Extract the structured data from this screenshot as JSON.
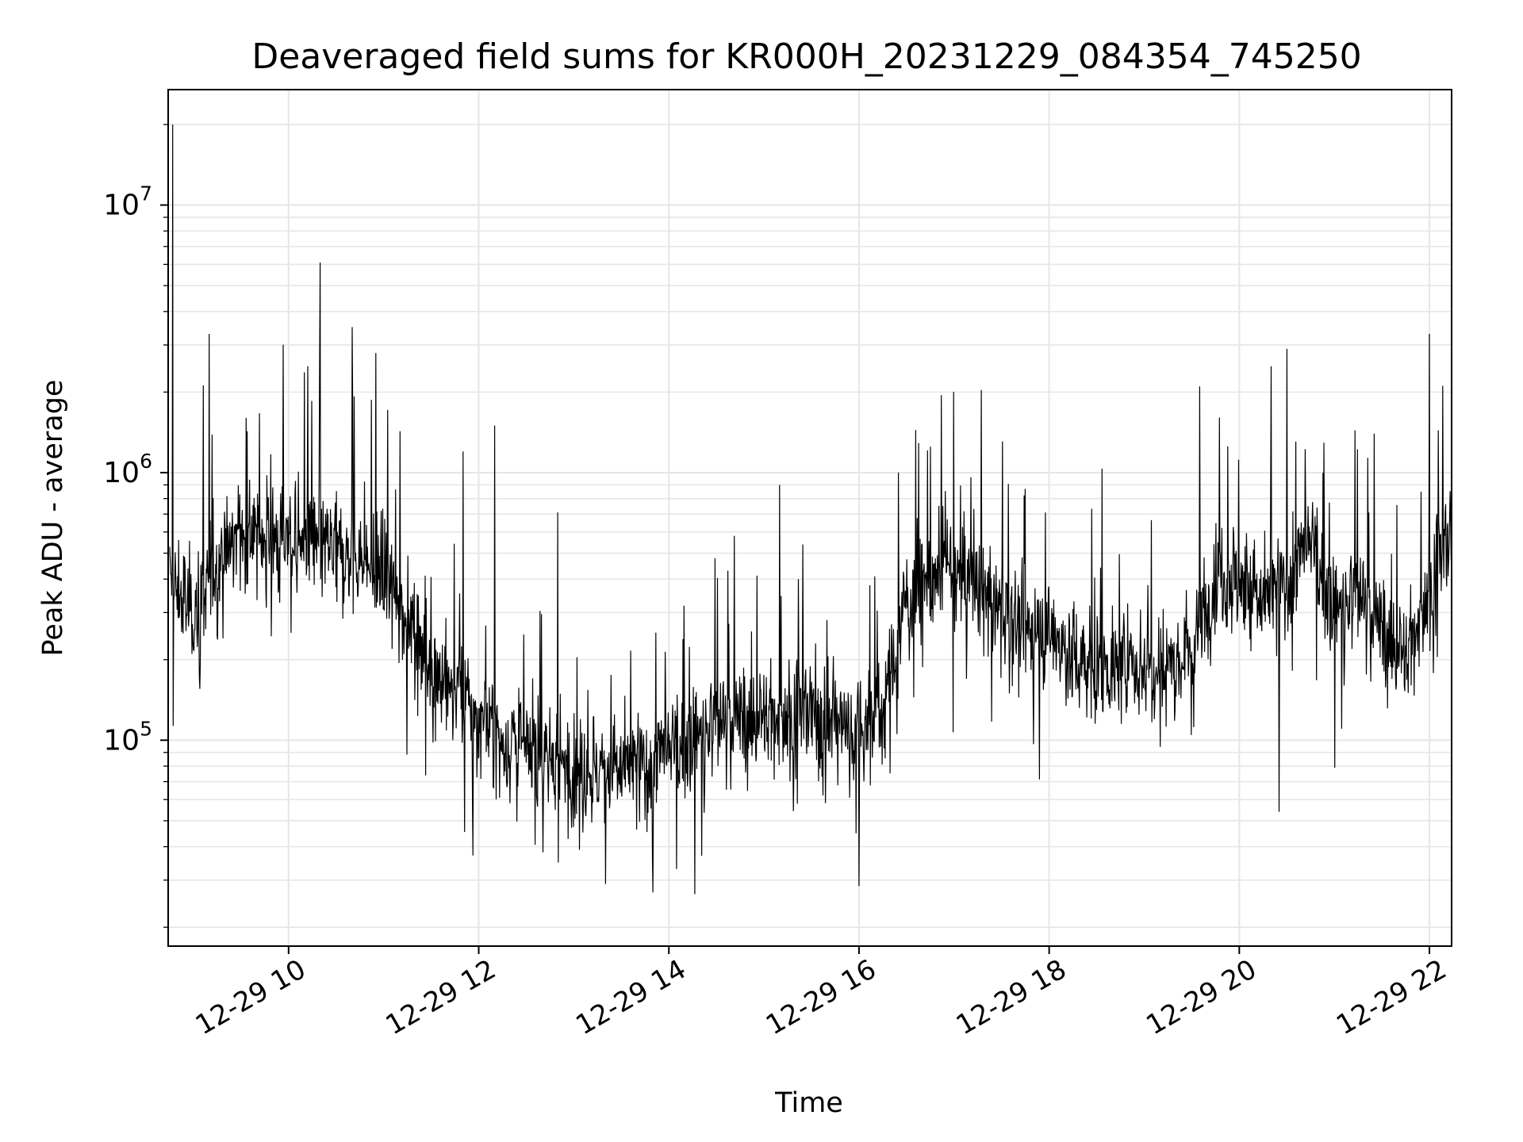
{
  "chart_data": {
    "type": "line",
    "title": "Deaveraged field sums for KR000H_20231229_084354_745250",
    "xlabel": "Time",
    "ylabel": "Peak ADU - average",
    "x_ticks": [
      "12-29 10",
      "12-29 12",
      "12-29 14",
      "12-29 16",
      "12-29 18",
      "12-29 20",
      "12-29 22"
    ],
    "y_ticks": [
      {
        "base": "10",
        "exp": "5",
        "value": 100000
      },
      {
        "base": "10",
        "exp": "6",
        "value": 1000000
      },
      {
        "base": "10",
        "exp": "7",
        "value": 10000000
      }
    ],
    "y_scale": "log",
    "ylim": [
      17000,
      27000000
    ],
    "xlim": [
      "2023-12-29 08:44",
      "2023-12-29 22:14"
    ],
    "grid": true,
    "line_color": "#000000",
    "series": [
      {
        "x": [
          "08:45",
          "09:00",
          "09:15",
          "09:30",
          "09:45",
          "10:00",
          "10:15",
          "10:30",
          "10:45",
          "11:00",
          "11:15",
          "11:30",
          "11:45",
          "12:00",
          "12:15",
          "12:30",
          "12:45",
          "13:00",
          "13:15",
          "13:30",
          "13:45",
          "14:00",
          "14:15",
          "14:30",
          "14:45",
          "15:00",
          "15:15",
          "15:30",
          "15:45",
          "16:00",
          "16:15",
          "16:30",
          "16:45",
          "17:00",
          "17:15",
          "17:30",
          "17:45",
          "18:00",
          "18:15",
          "18:30",
          "18:45",
          "19:00",
          "19:15",
          "19:30",
          "19:45",
          "20:00",
          "20:15",
          "20:30",
          "20:45",
          "21:00",
          "21:15",
          "21:30",
          "21:45",
          "22:00",
          "22:14"
        ],
        "values": [
          380000,
          300000,
          450000,
          600000,
          580000,
          560000,
          540000,
          500000,
          470000,
          400000,
          300000,
          190000,
          150000,
          120000,
          100000,
          90000,
          85000,
          80000,
          75000,
          78000,
          80000,
          90000,
          100000,
          115000,
          120000,
          120000,
          125000,
          125000,
          115000,
          110000,
          130000,
          330000,
          400000,
          420000,
          380000,
          300000,
          250000,
          260000,
          200000,
          190000,
          185000,
          190000,
          200000,
          220000,
          420000,
          400000,
          320000,
          380000,
          550000,
          300000,
          350000,
          260000,
          200000,
          380000,
          580000
        ],
        "spikes": [
          {
            "x": "08:47",
            "y": 20000000
          },
          {
            "x": "09:10",
            "y": 3300000
          },
          {
            "x": "10:12",
            "y": 2500000
          },
          {
            "x": "10:20",
            "y": 6100000
          },
          {
            "x": "10:40",
            "y": 3500000
          },
          {
            "x": "10:55",
            "y": 2800000
          },
          {
            "x": "11:50",
            "y": 1200000
          },
          {
            "x": "12:10",
            "y": 1500000
          },
          {
            "x": "12:50",
            "y": 710000
          },
          {
            "x": "13:20",
            "y": 29000
          },
          {
            "x": "13:50",
            "y": 27000
          },
          {
            "x": "15:10",
            "y": 900000
          },
          {
            "x": "16:25",
            "y": 1000000
          },
          {
            "x": "16:45",
            "y": 1250000
          },
          {
            "x": "17:45",
            "y": 870000
          },
          {
            "x": "19:35",
            "y": 2100000
          },
          {
            "x": "20:20",
            "y": 2500000
          },
          {
            "x": "20:30",
            "y": 2900000
          },
          {
            "x": "20:25",
            "y": 54000
          },
          {
            "x": "22:00",
            "y": 3300000
          }
        ]
      }
    ]
  }
}
